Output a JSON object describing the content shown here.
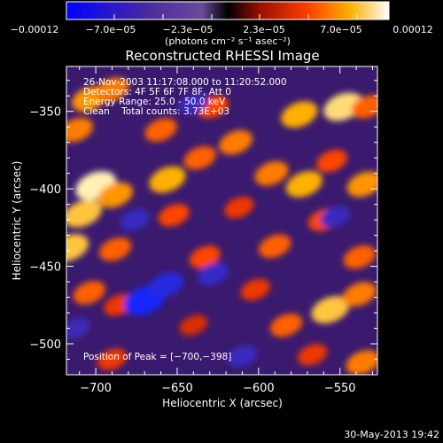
{
  "chart_data": {
    "type": "heatmap",
    "title": "Reconstructed RHESSI Image",
    "xlabel": "Heliocentric X (arcsec)",
    "ylabel": "Heliocentric Y (arcsec)",
    "xlim": [
      -718,
      -527
    ],
    "ylim": [
      -520,
      -321
    ],
    "xticks": [
      -700,
      -650,
      -600,
      -550
    ],
    "yticks": [
      -350,
      -400,
      -450,
      -500
    ],
    "xtick_labels": [
      "−700",
      "−650",
      "−600",
      "−550"
    ],
    "ytick_labels": [
      "−350",
      "−400",
      "−450",
      "−500"
    ],
    "colorbar": {
      "min": -0.00012,
      "max": 0.00012,
      "tick_labels": [
        "−0.00012",
        "−7.0e−05",
        "−2.3e−05",
        "2.3e−05",
        "7.0e−05",
        "0.00012"
      ],
      "unit_label": "(photons cm⁻² s⁻¹ asec⁻²)"
    },
    "annotations": [
      "26-Nov-2003 11:17:08.000 to 11:20:52.000",
      "Detectors: 4F 5F 6F 7F 8F, Att 0",
      "Energy Range: 25.0 - 50.0 keV",
      "Clean    Total counts: 3.73E+03"
    ],
    "peak_label": "Position of Peak = [−700,−398]",
    "timestamp": "30-May-2013 19:42",
    "hotspots": [
      {
        "x": -704,
        "y": -342,
        "v": 8e-05
      },
      {
        "x": -690,
        "y": -336,
        "v": 7e-05
      },
      {
        "x": -660,
        "y": -362,
        "v": 6e-05
      },
      {
        "x": -628,
        "y": -347,
        "v": 5e-05
      },
      {
        "x": -575,
        "y": -352,
        "v": 9e-05
      },
      {
        "x": -548,
        "y": -347,
        "v": 0.00011
      },
      {
        "x": -533,
        "y": -347,
        "v": 6e-05
      },
      {
        "x": -712,
        "y": -362,
        "v": 7e-05
      },
      {
        "x": -700,
        "y": -398,
        "v": 0.00012
      },
      {
        "x": -708,
        "y": -416,
        "v": 0.0001
      },
      {
        "x": -688,
        "y": -404,
        "v": 8e-05
      },
      {
        "x": -656,
        "y": -394,
        "v": 9e-05
      },
      {
        "x": -636,
        "y": -380,
        "v": 6e-05
      },
      {
        "x": -614,
        "y": -370,
        "v": 7e-05
      },
      {
        "x": -592,
        "y": -390,
        "v": 7e-05
      },
      {
        "x": -572,
        "y": -397,
        "v": 9e-05
      },
      {
        "x": -555,
        "y": -382,
        "v": 5e-05
      },
      {
        "x": -535,
        "y": -397,
        "v": 8e-05
      },
      {
        "x": -716,
        "y": -438,
        "v": 0.0001
      },
      {
        "x": -688,
        "y": -439,
        "v": 6e-05
      },
      {
        "x": -652,
        "y": -417,
        "v": 5e-05
      },
      {
        "x": -633,
        "y": -444,
        "v": 5e-05
      },
      {
        "x": -612,
        "y": -412,
        "v": 4e-05
      },
      {
        "x": -590,
        "y": -437,
        "v": 6e-05
      },
      {
        "x": -560,
        "y": -420,
        "v": 5e-05
      },
      {
        "x": -538,
        "y": -444,
        "v": 6e-05
      },
      {
        "x": -704,
        "y": -467,
        "v": 6e-05
      },
      {
        "x": -686,
        "y": -475,
        "v": 4e-05
      },
      {
        "x": -640,
        "y": -488,
        "v": 3e-05
      },
      {
        "x": -602,
        "y": -465,
        "v": 4e-05
      },
      {
        "x": -583,
        "y": -488,
        "v": 6e-05
      },
      {
        "x": -556,
        "y": -478,
        "v": 0.0001
      },
      {
        "x": -538,
        "y": -468,
        "v": 7e-05
      },
      {
        "x": -536,
        "y": -512,
        "v": 7e-05
      },
      {
        "x": -567,
        "y": -507,
        "v": 4e-05
      },
      {
        "x": -690,
        "y": -510,
        "v": 4e-05
      },
      {
        "x": -670,
        "y": -472,
        "v": -0.00012
      },
      {
        "x": -657,
        "y": -462,
        "v": -8e-05
      },
      {
        "x": -628,
        "y": -455,
        "v": -5e-05
      },
      {
        "x": -676,
        "y": -420,
        "v": -4e-05
      },
      {
        "x": -610,
        "y": -508,
        "v": -4e-05
      },
      {
        "x": -640,
        "y": -345,
        "v": -4e-05
      },
      {
        "x": -553,
        "y": -418,
        "v": -4e-05
      },
      {
        "x": -712,
        "y": -490,
        "v": -3e-05
      }
    ]
  }
}
